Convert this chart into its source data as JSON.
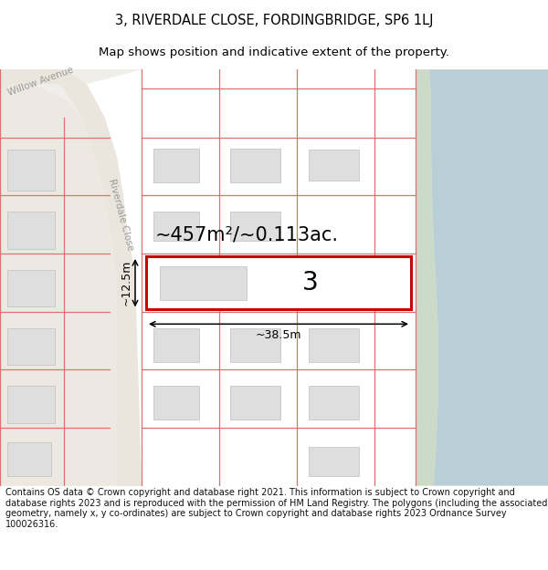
{
  "title": "3, RIVERDALE CLOSE, FORDINGBRIDGE, SP6 1LJ",
  "subtitle": "Map shows position and indicative extent of the property.",
  "footer": "Contains OS data © Crown copyright and database right 2021. This information is subject to Crown copyright and database rights 2023 and is reproduced with the permission of HM Land Registry. The polygons (including the associated geometry, namely x, y co-ordinates) are subject to Crown copyright and database rights 2023 Ordnance Survey 100026316.",
  "area_text": "~457m²/~0.113ac.",
  "number_text": "3",
  "width_text": "~38.5m",
  "height_text": "~12.5m",
  "title_fontsize": 10.5,
  "subtitle_fontsize": 9.5,
  "footer_fontsize": 7.0,
  "plot_outline_color": "#e07070",
  "highlight_color": "#cc0000",
  "building_fill": "#dedede",
  "building_edge": "#c0c0c0",
  "road_label_color": "#999999",
  "river_color": "#b8cfd8",
  "river_bank_color": "#ccdbc8",
  "map_bg": "#f0eeea",
  "white_area_bg": "#ffffff",
  "left_bg": "#ede9e2"
}
